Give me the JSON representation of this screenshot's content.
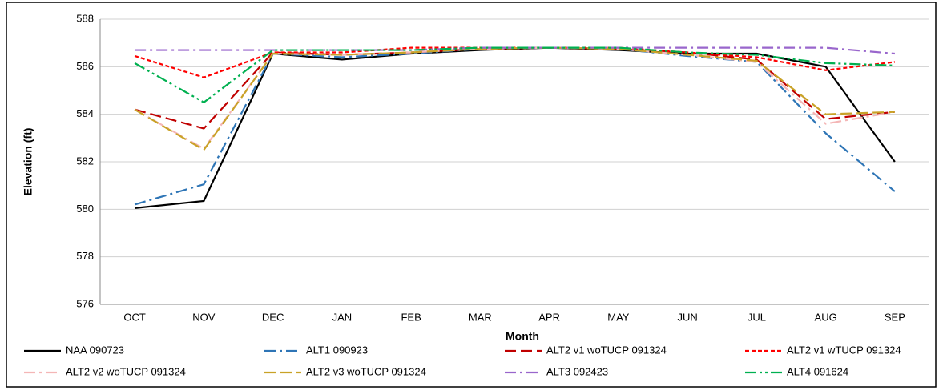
{
  "chart_data": {
    "type": "line",
    "y_label": "Elevation (ft)",
    "x_label": "Month",
    "categories": [
      "OCT",
      "NOV",
      "DEC",
      "JAN",
      "FEB",
      "MAR",
      "APR",
      "MAY",
      "JUN",
      "JUL",
      "AUG",
      "SEP"
    ],
    "ylim": [
      576,
      588
    ],
    "yticks": [
      576,
      578,
      580,
      582,
      584,
      586,
      588
    ],
    "grid": true,
    "legend": "bottom",
    "series": [
      {
        "name": "NAA 090723",
        "color": "#000000",
        "dash": "none",
        "values": [
          580.05,
          580.35,
          586.55,
          586.3,
          586.55,
          586.7,
          586.8,
          586.7,
          586.55,
          586.55,
          586.0,
          582.0
        ]
      },
      {
        "name": "ALT1 090923",
        "color": "#2e75b6",
        "dash": "14,5,3,5",
        "values": [
          580.2,
          581.05,
          586.55,
          586.4,
          586.55,
          586.75,
          586.8,
          586.75,
          586.45,
          586.2,
          583.2,
          580.75
        ]
      },
      {
        "name": "ALT2 v1 woTUCP 091324",
        "color": "#c00000",
        "dash": "14,6",
        "values": [
          584.2,
          583.4,
          586.6,
          586.5,
          586.6,
          586.75,
          586.8,
          586.75,
          586.6,
          586.3,
          583.8,
          584.1
        ]
      },
      {
        "name": "ALT2 v1 wTUCP 091324",
        "color": "#ff0000",
        "dash": "5,3",
        "values": [
          586.45,
          585.55,
          586.6,
          586.6,
          586.8,
          586.8,
          586.8,
          586.8,
          586.6,
          586.4,
          585.85,
          586.2
        ]
      },
      {
        "name": "ALT2 v2 woTUCP 091324",
        "color": "#f4b6b6",
        "dash": "14,5,3,5",
        "values": [
          584.2,
          582.55,
          586.55,
          586.5,
          586.6,
          586.75,
          586.8,
          586.75,
          586.5,
          586.2,
          583.6,
          584.1
        ]
      },
      {
        "name": "ALT2 v3 woTUCP 091324",
        "color": "#c9a227",
        "dash": "14,6",
        "values": [
          584.2,
          582.5,
          586.55,
          586.5,
          586.6,
          586.75,
          586.8,
          586.75,
          586.5,
          586.25,
          584.0,
          584.1
        ]
      },
      {
        "name": "ALT3 092423",
        "color": "#9966cc",
        "dash": "14,5,3,5",
        "values": [
          586.7,
          586.7,
          586.7,
          586.7,
          586.7,
          586.8,
          586.8,
          586.8,
          586.8,
          586.8,
          586.8,
          586.55
        ]
      },
      {
        "name": "ALT4 091624",
        "color": "#00b050",
        "dash": "14,4,3,4,3,4",
        "values": [
          586.15,
          584.5,
          586.7,
          586.7,
          586.7,
          586.8,
          586.8,
          586.8,
          586.6,
          586.5,
          586.15,
          586.05
        ]
      }
    ]
  }
}
